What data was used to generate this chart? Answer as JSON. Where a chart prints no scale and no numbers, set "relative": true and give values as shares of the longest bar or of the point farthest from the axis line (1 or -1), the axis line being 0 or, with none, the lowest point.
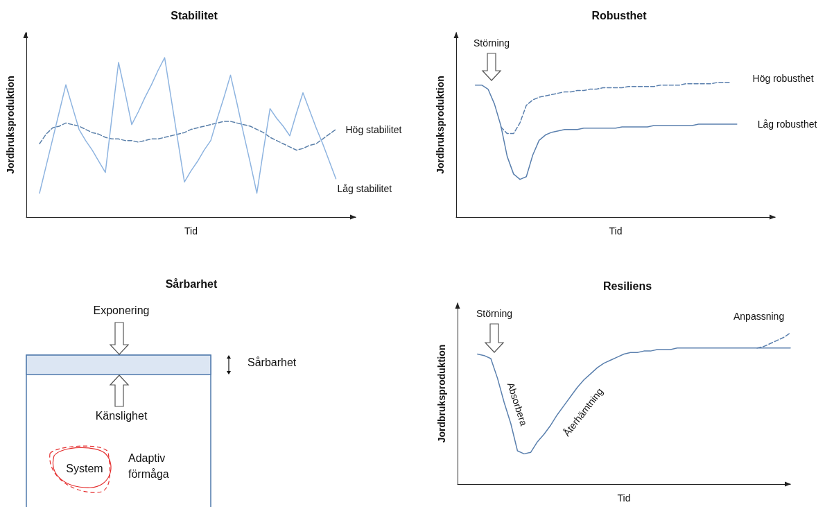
{
  "chart_data": [
    {
      "type": "line",
      "title": "Stabilitet",
      "xlabel": "Tid",
      "ylabel": "Jordbruksproduktion",
      "relative": true,
      "marker": "none",
      "categories": [
        null,
        null,
        null,
        null,
        null,
        null,
        null,
        null,
        null,
        null,
        null,
        null,
        null,
        null,
        null,
        null,
        null,
        null,
        null,
        null,
        null,
        null,
        null,
        null,
        null,
        null,
        null,
        null,
        null,
        null,
        null,
        null,
        null,
        null,
        null,
        null,
        null,
        null,
        null,
        null,
        null,
        null,
        null,
        null,
        null,
        null,
        null,
        null,
        null,
        null,
        null
      ],
      "series": [
        {
          "name": "Hög stabilitet",
          "color": "#5b80aa",
          "line_style": "dashed",
          "values": [
            null,
            null,
            0.46,
            0.52,
            0.56,
            0.57,
            0.59,
            0.58,
            0.57,
            0.55,
            0.53,
            0.52,
            0.5,
            0.49,
            0.49,
            0.48,
            0.48,
            0.47,
            0.48,
            0.49,
            0.49,
            0.5,
            0.51,
            0.52,
            0.53,
            0.55,
            0.56,
            0.57,
            0.58,
            0.59,
            0.6,
            0.6,
            0.59,
            0.58,
            0.57,
            0.55,
            0.53,
            0.5,
            0.48,
            0.46,
            0.44,
            0.42,
            0.43,
            0.45,
            0.46,
            0.49,
            0.52,
            0.55,
            null,
            null,
            null
          ]
        },
        {
          "name": "Låg stabilitet",
          "color": "#8eb4e0",
          "line_style": "solid",
          "values": [
            null,
            null,
            0.15,
            0.32,
            0.49,
            0.66,
            0.83,
            0.69,
            0.55,
            0.48,
            0.42,
            0.35,
            0.28,
            0.63,
            0.97,
            0.78,
            0.58,
            0.66,
            0.75,
            0.83,
            0.92,
            1.0,
            0.74,
            0.48,
            0.22,
            0.29,
            0.35,
            0.42,
            0.48,
            0.62,
            0.75,
            0.89,
            0.71,
            0.52,
            0.34,
            0.15,
            0.42,
            0.68,
            0.62,
            0.57,
            0.51,
            0.65,
            0.78,
            0.67,
            0.56,
            0.46,
            0.35,
            0.24,
            null,
            null,
            null
          ]
        }
      ]
    },
    {
      "type": "line",
      "title": "Robusthet",
      "xlabel": "Tid",
      "ylabel": "Jordbruksproduktion",
      "relative": true,
      "marker": "none",
      "annotations": [
        "Störning"
      ],
      "categories": [
        null,
        null,
        null,
        null,
        null,
        null,
        null,
        null,
        null,
        null,
        null,
        null,
        null,
        null,
        null,
        null,
        null,
        null,
        null,
        null,
        null,
        null,
        null,
        null,
        null,
        null,
        null,
        null,
        null,
        null,
        null,
        null,
        null,
        null,
        null,
        null,
        null,
        null,
        null,
        null,
        null,
        null,
        null,
        null,
        null,
        null,
        null,
        null,
        null,
        null,
        null
      ],
      "series": [
        {
          "name": "Hög robusthet",
          "color": "#5b80ae",
          "line_style": "dashed",
          "values": [
            null,
            null,
            null,
            null,
            null,
            null,
            null,
            0.67,
            0.62,
            0.62,
            0.7,
            0.83,
            0.87,
            0.89,
            0.9,
            0.91,
            0.92,
            0.93,
            0.93,
            0.94,
            0.94,
            0.95,
            0.95,
            0.96,
            0.96,
            0.96,
            0.96,
            0.97,
            0.97,
            0.97,
            0.97,
            0.97,
            0.98,
            0.98,
            0.98,
            0.98,
            0.99,
            0.99,
            0.99,
            0.99,
            0.99,
            1.0,
            1.0,
            1.0,
            null,
            null,
            null,
            null,
            null,
            null,
            null
          ]
        },
        {
          "name": "Låg robusthet",
          "color": "#5b80ae",
          "line_style": "solid",
          "values": [
            null,
            null,
            null,
            0.98,
            0.98,
            0.95,
            0.84,
            0.68,
            0.45,
            0.32,
            0.28,
            0.3,
            0.46,
            0.57,
            0.61,
            0.63,
            0.64,
            0.65,
            0.65,
            0.65,
            0.66,
            0.66,
            0.66,
            0.66,
            0.66,
            0.66,
            0.67,
            0.67,
            0.67,
            0.67,
            0.67,
            0.68,
            0.68,
            0.68,
            0.68,
            0.68,
            0.68,
            0.68,
            0.69,
            0.69,
            0.69,
            0.69,
            0.69,
            0.69,
            0.69,
            null,
            null,
            null,
            null,
            null,
            null
          ]
        }
      ]
    },
    {
      "type": "other",
      "title": "Sårbarhet",
      "annotations": [
        "Exponering",
        "Sårbarhet",
        "Känslighet",
        "System",
        "Adaptiv förmåga"
      ]
    },
    {
      "type": "line",
      "title": "Resiliens",
      "xlabel": "Tid",
      "ylabel": "Jordbruksproduktion",
      "relative": true,
      "marker": "none",
      "annotations": [
        "Störning",
        "Absorbera",
        "Återhämtning"
      ],
      "categories": [
        null,
        null,
        null,
        null,
        null,
        null,
        null,
        null,
        null,
        null,
        null,
        null,
        null,
        null,
        null,
        null,
        null,
        null,
        null,
        null,
        null,
        null,
        null,
        null,
        null,
        null,
        null,
        null,
        null,
        null,
        null,
        null,
        null,
        null,
        null,
        null,
        null,
        null,
        null,
        null,
        null,
        null,
        null,
        null,
        null,
        null,
        null,
        null,
        null,
        null,
        null
      ],
      "series": [
        {
          "color": "#5b80ae",
          "line_style": "solid",
          "values": [
            null,
            null,
            null,
            0.86,
            0.85,
            0.83,
            0.7,
            0.54,
            0.4,
            0.22,
            0.2,
            0.21,
            0.28,
            0.33,
            0.39,
            0.46,
            0.52,
            0.58,
            0.64,
            0.69,
            0.73,
            0.77,
            0.8,
            0.82,
            0.84,
            0.86,
            0.87,
            0.87,
            0.88,
            0.88,
            0.89,
            0.89,
            0.89,
            0.9,
            0.9,
            0.9,
            0.9,
            0.9,
            0.9,
            0.9,
            0.9,
            0.9,
            0.9,
            0.9,
            0.9,
            0.9,
            0.9,
            0.9,
            0.9,
            0.9,
            0.9
          ]
        },
        {
          "name": "Anpassning",
          "color": "#5b80ae",
          "line_style": "dashed",
          "values": [
            null,
            null,
            null,
            null,
            null,
            null,
            null,
            null,
            null,
            null,
            null,
            null,
            null,
            null,
            null,
            null,
            null,
            null,
            null,
            null,
            null,
            null,
            null,
            null,
            null,
            null,
            null,
            null,
            null,
            null,
            null,
            null,
            null,
            null,
            null,
            null,
            null,
            null,
            null,
            null,
            null,
            null,
            null,
            null,
            null,
            0.9,
            0.91,
            0.93,
            0.95,
            0.97,
            1.0
          ]
        }
      ]
    }
  ]
}
